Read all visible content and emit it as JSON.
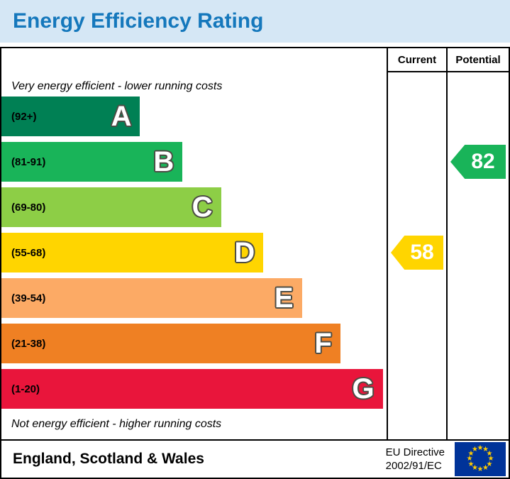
{
  "title": "Energy Efficiency Rating",
  "header": {
    "current": "Current",
    "potential": "Potential"
  },
  "notes": {
    "top": "Very energy efficient - lower running costs",
    "bottom": "Not energy efficient - higher running costs"
  },
  "bands": [
    {
      "letter": "A",
      "range": "(92+)",
      "color": "#008054",
      "width_pct": 36
    },
    {
      "letter": "B",
      "range": "(81-91)",
      "color": "#19b459",
      "width_pct": 47
    },
    {
      "letter": "C",
      "range": "(69-80)",
      "color": "#8dce46",
      "width_pct": 57
    },
    {
      "letter": "D",
      "range": "(55-68)",
      "color": "#ffd500",
      "width_pct": 68
    },
    {
      "letter": "E",
      "range": "(39-54)",
      "color": "#fcaa65",
      "width_pct": 78
    },
    {
      "letter": "F",
      "range": "(21-38)",
      "color": "#ef8023",
      "width_pct": 88
    },
    {
      "letter": "G",
      "range": "(1-20)",
      "color": "#e9153b",
      "width_pct": 99
    }
  ],
  "current": {
    "value": "58",
    "band": "D",
    "color": "#ffd500"
  },
  "potential": {
    "value": "82",
    "band": "B",
    "color": "#19b459"
  },
  "footer": {
    "region": "England, Scotland & Wales",
    "directive_line1": "EU Directive",
    "directive_line2": "2002/91/EC"
  },
  "colors": {
    "title_bg": "#d5e7f5",
    "title_text": "#1578bc",
    "flag_bg": "#003399",
    "star": "#ffcc00",
    "border": "#000000"
  },
  "chart_data": {
    "type": "bar",
    "orientation": "horizontal",
    "title": "Energy Efficiency Rating",
    "categories": [
      "A",
      "B",
      "C",
      "D",
      "E",
      "F",
      "G"
    ],
    "band_ranges": [
      "92+",
      "81-91",
      "69-80",
      "55-68",
      "39-54",
      "21-38",
      "1-20"
    ],
    "band_colors": [
      "#008054",
      "#19b459",
      "#8dce46",
      "#ffd500",
      "#fcaa65",
      "#ef8023",
      "#e9153b"
    ],
    "bar_widths_pct": [
      36,
      47,
      57,
      68,
      78,
      88,
      99
    ],
    "markers": [
      {
        "name": "Current",
        "value": 58,
        "band": "D"
      },
      {
        "name": "Potential",
        "value": 82,
        "band": "B"
      }
    ],
    "annotations": [
      "Very energy efficient - lower running costs",
      "Not energy efficient - higher running costs"
    ],
    "region_label": "England, Scotland & Wales",
    "directive": "EU Directive 2002/91/EC",
    "legend_position": "none",
    "grid": false
  }
}
